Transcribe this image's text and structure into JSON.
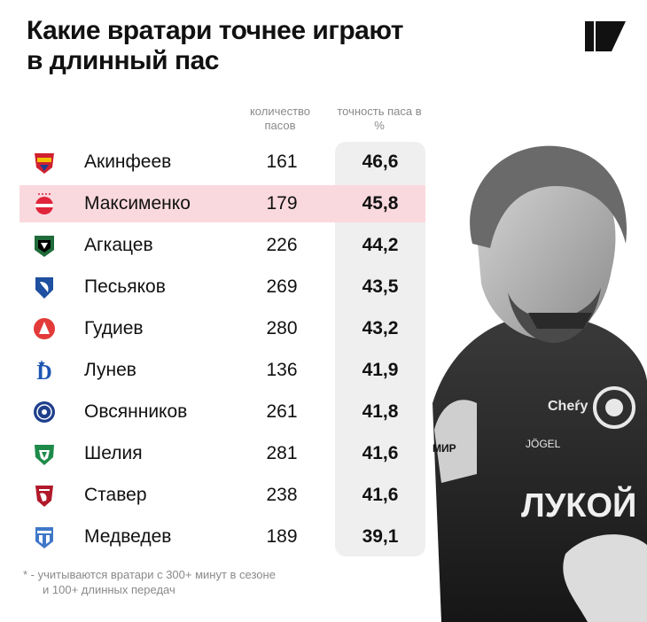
{
  "header": {
    "title_line1": "Какие вратари точнее играют",
    "title_line2": "в длинный пас",
    "logo_icon": "sports-media-logo-icon"
  },
  "columns": {
    "count": "количество пасов",
    "accuracy": "точность паса в %"
  },
  "chart_data": {
    "type": "table",
    "columns": [
      "количество пасов",
      "точность паса в %"
    ],
    "highlighted": "Максименко",
    "highlight_color": "#fad9de",
    "rows": [
      {
        "name": "Акинфеев",
        "count": "161",
        "accuracy": "46,6",
        "crest": "cska-crest-icon",
        "color": "#d02030"
      },
      {
        "name": "Максименко",
        "count": "179",
        "accuracy": "45,8",
        "crest": "spartak-crest-icon",
        "color": "#e0243a"
      },
      {
        "name": "Агкацев",
        "count": "226",
        "accuracy": "44,2",
        "crest": "krasnodar-crest-icon",
        "color": "#1f6b3a"
      },
      {
        "name": "Песьяков",
        "count": "269",
        "accuracy": "43,5",
        "crest": "krylia-sovetov-crest-icon",
        "color": "#1e4fa0"
      },
      {
        "name": "Гудиев",
        "count": "280",
        "accuracy": "43,2",
        "crest": "akhmat-red-crest-icon",
        "color": "#e33a3a"
      },
      {
        "name": "Лунев",
        "count": "136",
        "accuracy": "41,9",
        "crest": "dynamo-crest-icon",
        "color": "#1d55b3"
      },
      {
        "name": "Овсянников",
        "count": "261",
        "accuracy": "41,8",
        "crest": "fakel-crest-icon",
        "color": "#1f3f8c"
      },
      {
        "name": "Шелия",
        "count": "281",
        "accuracy": "41,6",
        "crest": "akhmat-crest-icon",
        "color": "#1e8a4a"
      },
      {
        "name": "Ставер",
        "count": "238",
        "accuracy": "41,6",
        "crest": "rubin-crest-icon",
        "color": "#b0192a"
      },
      {
        "name": "Медведев",
        "count": "189",
        "accuracy": "39,1",
        "crest": "baltika-crest-icon",
        "color": "#3f78c8"
      }
    ]
  },
  "footnote": {
    "line1": "* - учитываются вратари с 300+ минут в сезоне",
    "line2": "и 100+ длинных передач"
  },
  "photo": {
    "icon": "goalkeeper-photo",
    "shirt_text": "ЛУКОЙ",
    "brand_text": "Cheŕy",
    "kit_text": "JÖGEL",
    "league_text": "МИР"
  }
}
